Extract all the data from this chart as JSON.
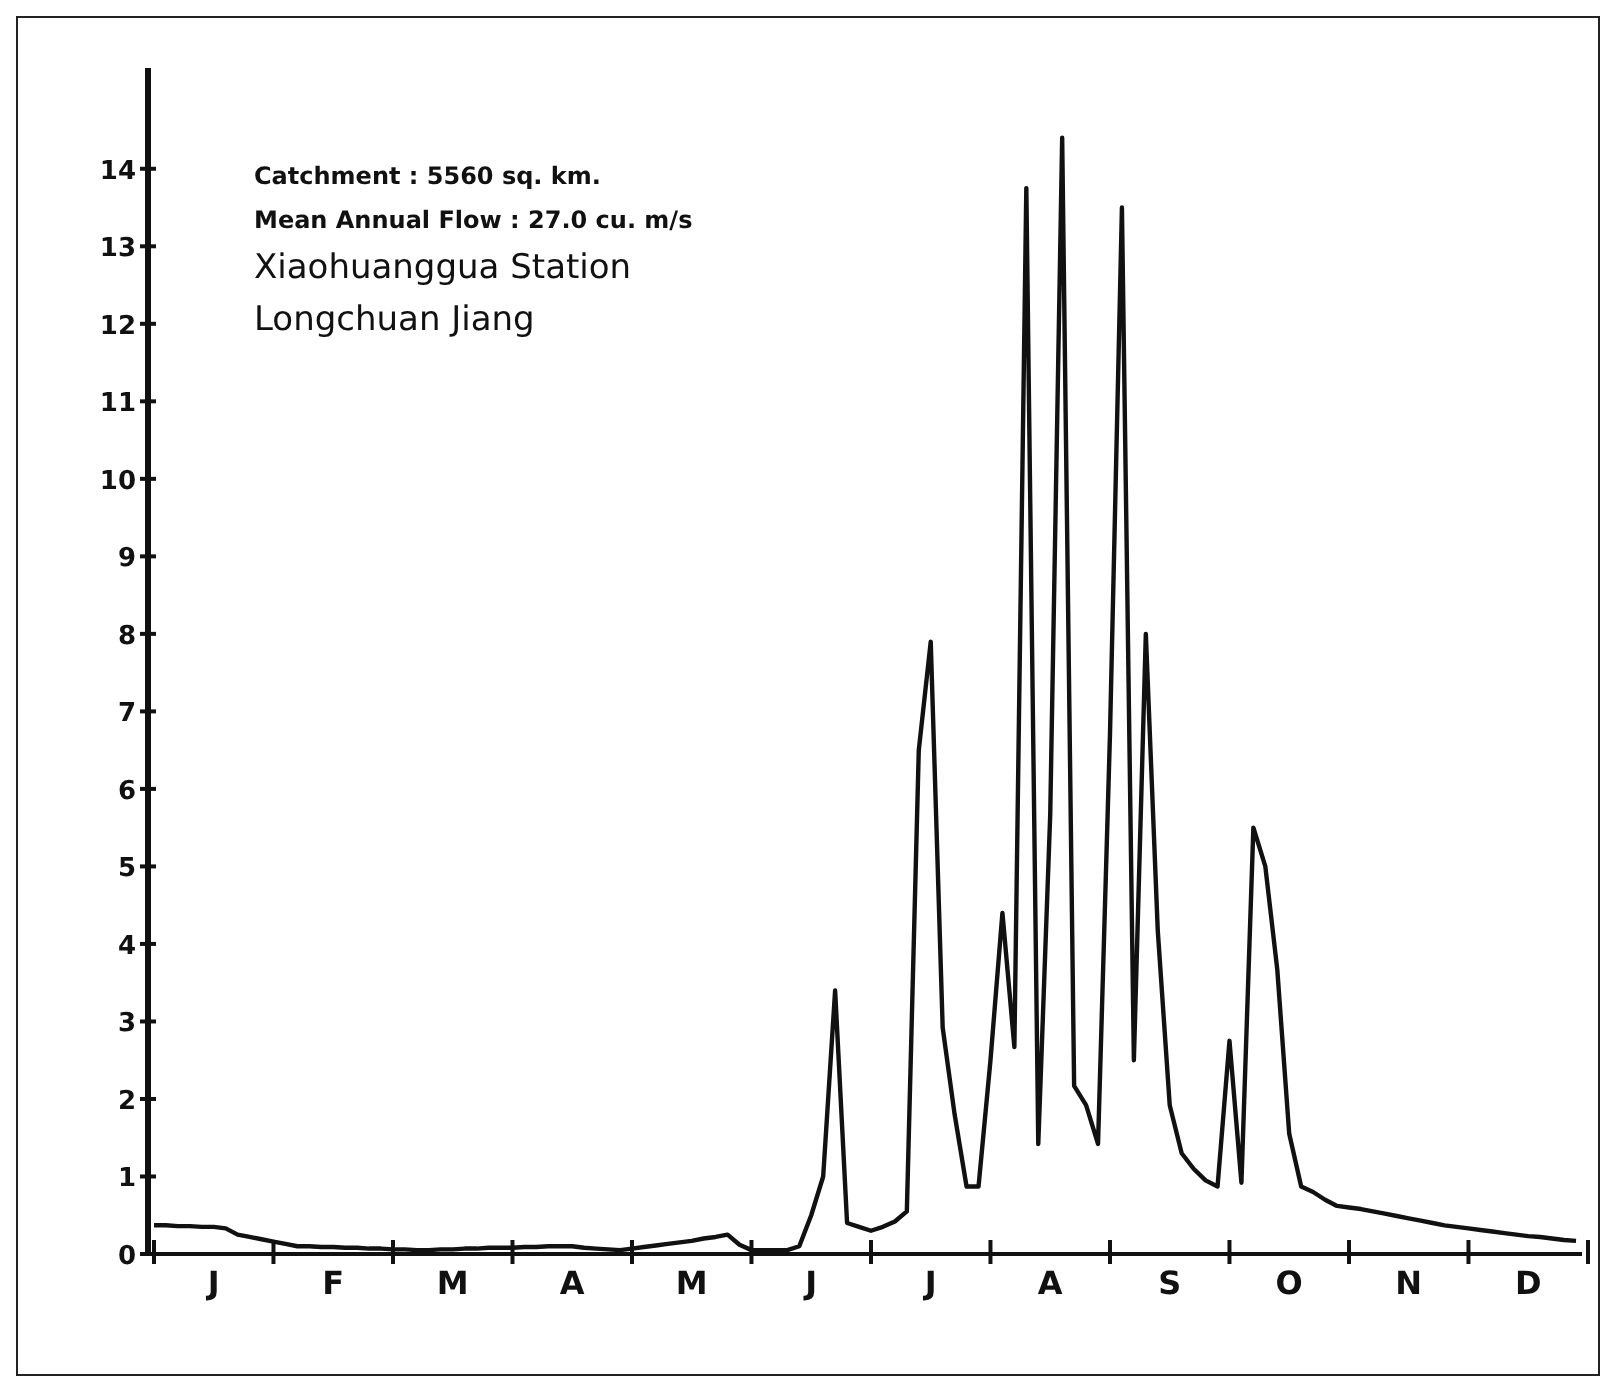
{
  "chart_data": {
    "type": "line",
    "annotations": [
      "Catchment : 5560 sq. km.",
      "Mean Annual Flow : 27.0 cu. m/s",
      "Xiaohuanggua Station",
      "Longchuan Jiang"
    ],
    "categories": [
      null,
      null,
      null,
      null,
      null,
      "J",
      null,
      null,
      null,
      null,
      null,
      null,
      null,
      null,
      null,
      "F",
      null,
      null,
      null,
      null,
      null,
      null,
      null,
      null,
      null,
      "M",
      null,
      null,
      null,
      null,
      null,
      null,
      null,
      null,
      null,
      "A",
      null,
      null,
      null,
      null,
      null,
      null,
      null,
      null,
      null,
      "M",
      null,
      null,
      null,
      null,
      null,
      null,
      null,
      null,
      null,
      "J",
      null,
      null,
      null,
      null,
      null,
      null,
      null,
      null,
      null,
      "J",
      null,
      null,
      null,
      null,
      null,
      null,
      null,
      null,
      null,
      "A",
      null,
      null,
      null,
      null,
      null,
      null,
      null,
      null,
      null,
      "S",
      null,
      null,
      null,
      null,
      null,
      null,
      null,
      null,
      null,
      "O",
      null,
      null,
      null,
      null,
      null,
      null,
      null,
      null,
      null,
      "N",
      null,
      null,
      null,
      null,
      null,
      null,
      null,
      null,
      null,
      "D",
      null,
      null,
      null,
      null
    ],
    "ylim": [
      0,
      15.3
    ],
    "yticks": [
      0,
      1,
      2,
      3,
      4,
      5,
      6,
      7,
      8,
      9,
      10,
      11,
      12,
      13,
      14
    ],
    "grid": false,
    "legend": false,
    "marker": "none",
    "line_style": "solid",
    "series": [
      {
        "color": "#111111",
        "values": [
          0.37,
          0.37,
          0.36,
          0.36,
          0.35,
          0.35,
          0.33,
          0.25,
          0.22,
          0.19,
          0.16,
          0.13,
          0.1,
          0.1,
          0.09,
          0.09,
          0.08,
          0.08,
          0.07,
          0.07,
          0.06,
          0.06,
          0.05,
          0.05,
          0.06,
          0.06,
          0.07,
          0.07,
          0.08,
          0.08,
          0.08,
          0.09,
          0.09,
          0.1,
          0.1,
          0.1,
          0.08,
          0.07,
          0.06,
          0.05,
          0.07,
          0.09,
          0.11,
          0.13,
          0.15,
          0.17,
          0.2,
          0.22,
          0.25,
          0.12,
          0.05,
          0.05,
          0.05,
          0.05,
          0.1,
          0.5,
          1.0,
          3.4,
          0.4,
          0.35,
          0.3,
          0.35,
          0.42,
          0.55,
          6.5,
          7.9,
          2.92,
          1.8,
          0.87,
          0.87,
          2.5,
          4.4,
          2.67,
          13.75,
          1.42,
          5.67,
          14.4,
          2.17,
          1.92,
          1.42,
          6.7,
          13.5,
          2.5,
          8.0,
          4.17,
          1.92,
          1.3,
          1.1,
          0.95,
          0.87,
          2.75,
          0.92,
          5.5,
          5.0,
          3.67,
          1.55,
          0.87,
          0.8,
          0.7,
          0.62,
          0.6,
          0.58,
          0.55,
          0.52,
          0.49,
          0.46,
          0.43,
          0.4,
          0.37,
          0.35,
          0.33,
          0.31,
          0.29,
          0.27,
          0.25,
          0.23,
          0.22,
          0.2,
          0.18,
          0.17
        ]
      }
    ]
  }
}
